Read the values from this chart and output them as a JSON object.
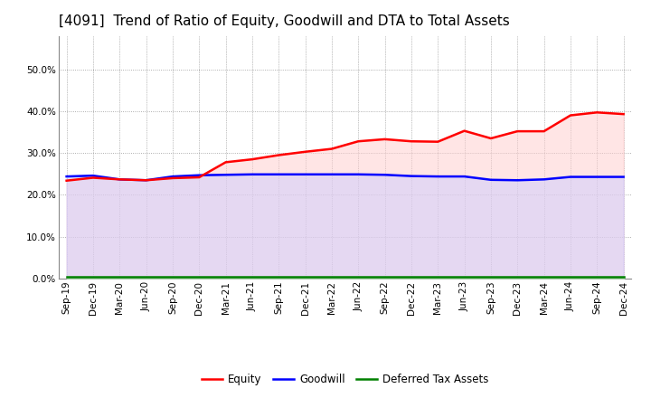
{
  "title": "[4091]  Trend of Ratio of Equity, Goodwill and DTA to Total Assets",
  "x_labels": [
    "Sep-19",
    "Dec-19",
    "Mar-20",
    "Jun-20",
    "Sep-20",
    "Dec-20",
    "Mar-21",
    "Jun-21",
    "Sep-21",
    "Dec-21",
    "Mar-22",
    "Jun-22",
    "Sep-22",
    "Dec-22",
    "Mar-23",
    "Jun-23",
    "Sep-23",
    "Dec-23",
    "Mar-24",
    "Jun-24",
    "Sep-24",
    "Dec-24"
  ],
  "equity": [
    0.234,
    0.241,
    0.237,
    0.235,
    0.24,
    0.242,
    0.278,
    0.285,
    0.295,
    0.303,
    0.31,
    0.328,
    0.333,
    0.328,
    0.327,
    0.353,
    0.335,
    0.352,
    0.352,
    0.39,
    0.397,
    0.393
  ],
  "goodwill": [
    0.244,
    0.246,
    0.237,
    0.235,
    0.244,
    0.247,
    0.248,
    0.249,
    0.249,
    0.249,
    0.249,
    0.249,
    0.248,
    0.245,
    0.244,
    0.244,
    0.236,
    0.235,
    0.237,
    0.243,
    0.243,
    0.243
  ],
  "dta": [
    0.005,
    0.005,
    0.005,
    0.005,
    0.005,
    0.005,
    0.005,
    0.005,
    0.005,
    0.005,
    0.005,
    0.005,
    0.005,
    0.005,
    0.005,
    0.005,
    0.005,
    0.005,
    0.005,
    0.005,
    0.005,
    0.005
  ],
  "equity_color": "#FF0000",
  "goodwill_color": "#0000FF",
  "dta_color": "#008000",
  "equity_fill": "#FFCCCC",
  "goodwill_fill": "#CCCCFF",
  "dta_fill": "#CCFFCC",
  "bg_color": "#FFFFFF",
  "plot_bg_color": "#FFFFFF",
  "grid_color": "#999999",
  "ylim": [
    0.0,
    0.58
  ],
  "yticks": [
    0.0,
    0.1,
    0.2,
    0.3,
    0.4,
    0.5
  ],
  "title_fontsize": 11,
  "tick_fontsize": 7.5,
  "legend_fontsize": 8.5,
  "line_width": 1.8
}
